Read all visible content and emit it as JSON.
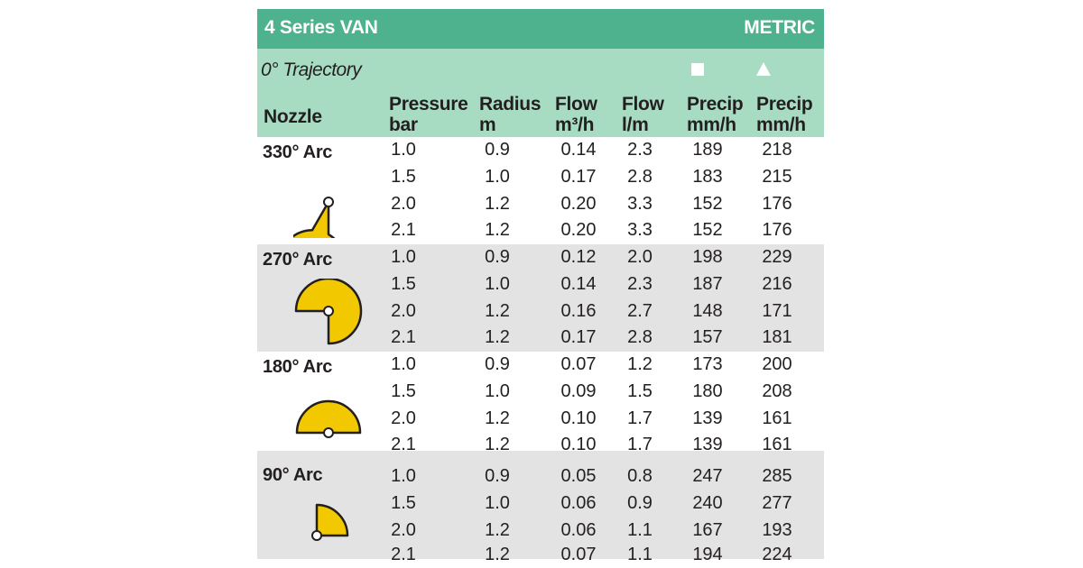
{
  "header": {
    "title": "4 Series VAN",
    "unit_system": "METRIC",
    "trajectory": "0° Trajectory",
    "nozzle_label": "Nozzle",
    "columns": [
      {
        "line1": "Pressure",
        "line2": "bar"
      },
      {
        "line1": "Radius",
        "line2": "m"
      },
      {
        "line1": "Flow",
        "line2": "m³/h"
      },
      {
        "line1": "Flow",
        "line2": "l/m"
      },
      {
        "line1": "Precip",
        "line2": "mm/h",
        "symbol": "square"
      },
      {
        "line1": "Precip",
        "line2": "mm/h",
        "symbol": "triangle"
      }
    ]
  },
  "colors": {
    "title_bar": "#4fb28f",
    "header_bar": "#a8dcc2",
    "alt_row": "#e3e3e3",
    "arc_fill": "#f2c900"
  },
  "groups": [
    {
      "arc": "330° Arc",
      "icon": "arc-330-icon",
      "rows": [
        {
          "pressure": "1.0",
          "radius": "0.9",
          "flow_m3h": "0.14",
          "flow_lm": "2.3",
          "precip_sq": "189",
          "precip_tri": "218"
        },
        {
          "pressure": "1.5",
          "radius": "1.0",
          "flow_m3h": "0.17",
          "flow_lm": "2.8",
          "precip_sq": "183",
          "precip_tri": "215"
        },
        {
          "pressure": "2.0",
          "radius": "1.2",
          "flow_m3h": "0.20",
          "flow_lm": "3.3",
          "precip_sq": "152",
          "precip_tri": "176"
        },
        {
          "pressure": "2.1",
          "radius": "1.2",
          "flow_m3h": "0.20",
          "flow_lm": "3.3",
          "precip_sq": "152",
          "precip_tri": "176"
        }
      ]
    },
    {
      "arc": "270° Arc",
      "icon": "arc-270-icon",
      "rows": [
        {
          "pressure": "1.0",
          "radius": "0.9",
          "flow_m3h": "0.12",
          "flow_lm": "2.0",
          "precip_sq": "198",
          "precip_tri": "229"
        },
        {
          "pressure": "1.5",
          "radius": "1.0",
          "flow_m3h": "0.14",
          "flow_lm": "2.3",
          "precip_sq": "187",
          "precip_tri": "216"
        },
        {
          "pressure": "2.0",
          "radius": "1.2",
          "flow_m3h": "0.16",
          "flow_lm": "2.7",
          "precip_sq": "148",
          "precip_tri": "171"
        },
        {
          "pressure": "2.1",
          "radius": "1.2",
          "flow_m3h": "0.17",
          "flow_lm": "2.8",
          "precip_sq": "157",
          "precip_tri": "181"
        }
      ]
    },
    {
      "arc": "180° Arc",
      "icon": "arc-180-icon",
      "rows": [
        {
          "pressure": "1.0",
          "radius": "0.9",
          "flow_m3h": "0.07",
          "flow_lm": "1.2",
          "precip_sq": "173",
          "precip_tri": "200"
        },
        {
          "pressure": "1.5",
          "radius": "1.0",
          "flow_m3h": "0.09",
          "flow_lm": "1.5",
          "precip_sq": "180",
          "precip_tri": "208"
        },
        {
          "pressure": "2.0",
          "radius": "1.2",
          "flow_m3h": "0.10",
          "flow_lm": "1.7",
          "precip_sq": "139",
          "precip_tri": "161"
        },
        {
          "pressure": "2.1",
          "radius": "1.2",
          "flow_m3h": "0.10",
          "flow_lm": "1.7",
          "precip_sq": "139",
          "precip_tri": "161"
        }
      ]
    },
    {
      "arc": "90° Arc",
      "icon": "arc-90-icon",
      "rows": [
        {
          "pressure": "1.0",
          "radius": "0.9",
          "flow_m3h": "0.05",
          "flow_lm": "0.8",
          "precip_sq": "247",
          "precip_tri": "285"
        },
        {
          "pressure": "1.5",
          "radius": "1.0",
          "flow_m3h": "0.06",
          "flow_lm": "0.9",
          "precip_sq": "240",
          "precip_tri": "277"
        },
        {
          "pressure": "2.0",
          "radius": "1.2",
          "flow_m3h": "0.06",
          "flow_lm": "1.1",
          "precip_sq": "167",
          "precip_tri": "193"
        },
        {
          "pressure": "2.1",
          "radius": "1.2",
          "flow_m3h": "0.07",
          "flow_lm": "1.1",
          "precip_sq": "194",
          "precip_tri": "224"
        }
      ]
    }
  ]
}
